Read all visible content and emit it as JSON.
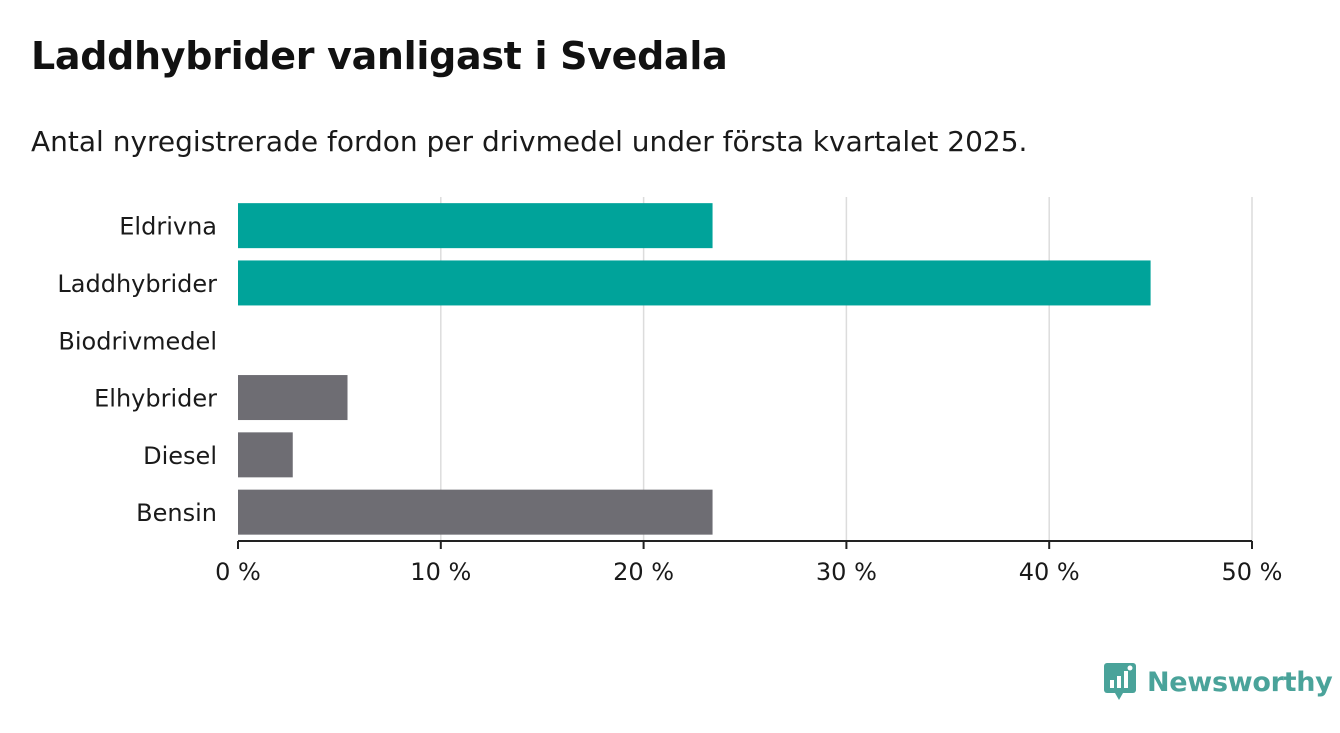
{
  "title": "Laddhybrider vanligast i Svedala",
  "subtitle": "Antal nyregistrerade fordon per drivmedel under första kvartalet 2025.",
  "brand": {
    "name": "Newsworthy",
    "icon": "newsworthy-logo-icon",
    "color": "#4aa39a"
  },
  "chart_data": {
    "type": "bar",
    "orientation": "horizontal",
    "categories": [
      "Eldrivna",
      "Laddhybrider",
      "Biodrivmedel",
      "Elhybrider",
      "Diesel",
      "Bensin"
    ],
    "values": [
      23.4,
      45.0,
      0,
      5.4,
      2.7,
      23.4
    ],
    "colors": [
      "#00a39a",
      "#00a39a",
      "#00a39a",
      "#6e6d73",
      "#6e6d73",
      "#6e6d73"
    ],
    "xlim": [
      0,
      50
    ],
    "xticks": [
      0,
      10,
      20,
      30,
      40,
      50
    ],
    "xtick_labels": [
      "0 %",
      "10 %",
      "20 %",
      "30 %",
      "40 %",
      "50 %"
    ],
    "grid": "vertical",
    "xlabel": "",
    "ylabel": ""
  }
}
